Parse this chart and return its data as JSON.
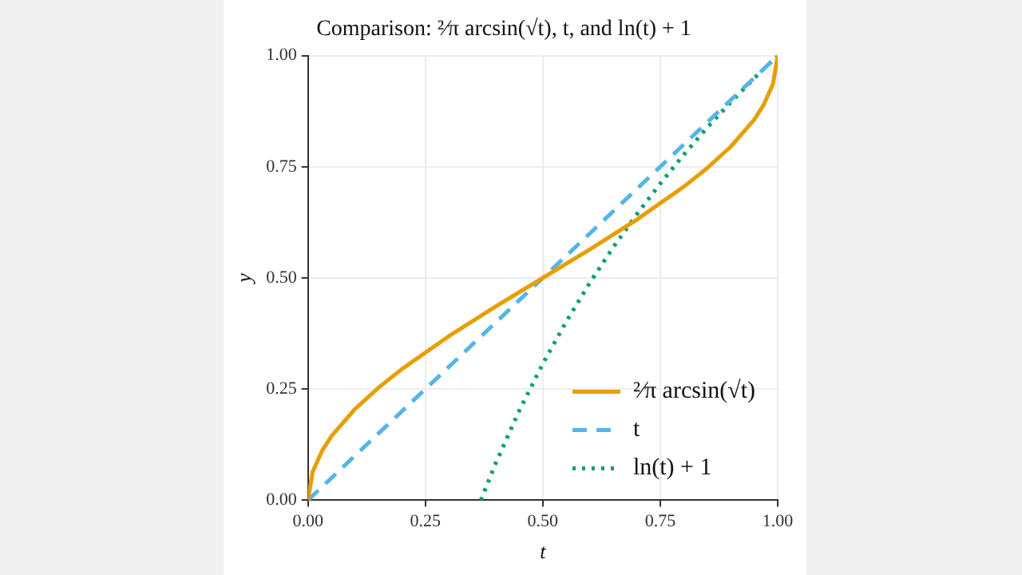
{
  "chart_data": {
    "type": "line",
    "title": "Comparison: ²⁄π arcsin(√t), t, and ln(t) + 1",
    "xlabel": "t",
    "ylabel": "y",
    "series": [
      {
        "name": "²⁄π arcsin(√t)",
        "color": "#e69f00",
        "line_style": "solid",
        "x": [
          0,
          0.01,
          0.03,
          0.05,
          0.1,
          0.15,
          0.2,
          0.3,
          0.4,
          0.5,
          0.6,
          0.7,
          0.8,
          0.85,
          0.9,
          0.95,
          0.97,
          0.99,
          1
        ],
        "values": [
          0,
          0.064,
          0.111,
          0.144,
          0.205,
          0.253,
          0.295,
          0.369,
          0.436,
          0.5,
          0.564,
          0.631,
          0.705,
          0.747,
          0.795,
          0.856,
          0.889,
          0.936,
          1
        ]
      },
      {
        "name": "t",
        "color": "#56b4e9",
        "line_style": "dashed",
        "x": [
          0,
          1
        ],
        "values": [
          0,
          1
        ]
      },
      {
        "name": "ln(t) + 1",
        "color": "#009e73",
        "line_style": "dotted",
        "x": [
          0.368,
          0.4,
          0.45,
          0.5,
          0.55,
          0.6,
          0.65,
          0.7,
          0.75,
          0.8,
          0.85,
          0.9,
          0.95,
          1
        ],
        "values": [
          0,
          0.084,
          0.202,
          0.307,
          0.402,
          0.489,
          0.569,
          0.643,
          0.712,
          0.777,
          0.838,
          0.895,
          0.949,
          1
        ]
      }
    ],
    "xlim": [
      0,
      1
    ],
    "ylim": [
      0,
      1
    ],
    "xticks": [
      {
        "value": 0,
        "label": "0.00"
      },
      {
        "value": 0.25,
        "label": "0.25"
      },
      {
        "value": 0.5,
        "label": "0.50"
      },
      {
        "value": 0.75,
        "label": "0.75"
      },
      {
        "value": 1,
        "label": "1.00"
      }
    ],
    "yticks": [
      {
        "value": 0,
        "label": "0.00"
      },
      {
        "value": 0.25,
        "label": "0.25"
      },
      {
        "value": 0.5,
        "label": "0.50"
      },
      {
        "value": 0.75,
        "label": "0.75"
      },
      {
        "value": 1,
        "label": "1.00"
      }
    ],
    "grid": true,
    "legend": "bottom right",
    "marker": "none"
  }
}
